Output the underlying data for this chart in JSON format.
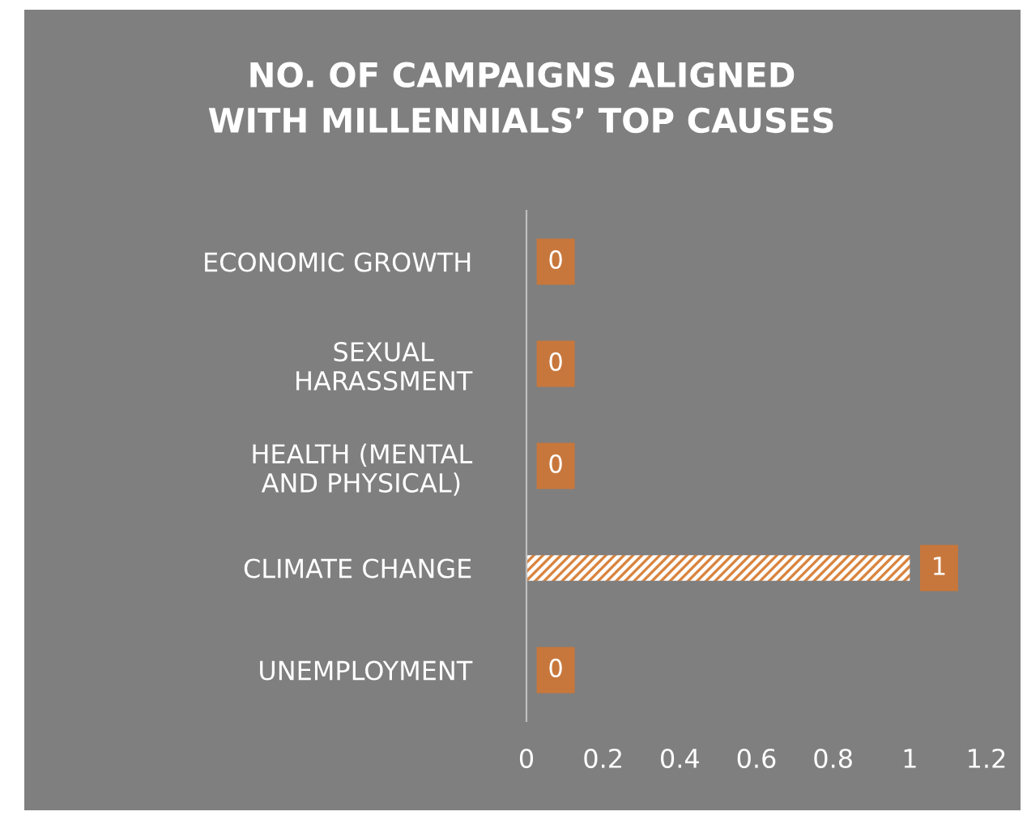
{
  "chart_data": {
    "type": "bar",
    "orientation": "horizontal",
    "title": "NO. OF CAMPAIGNS ALIGNED\nWITH MILLENNIALS’ TOP CAUSES",
    "categories": [
      "ECONOMIC GROWTH",
      "SEXUAL\nHARASSMENT",
      "HEALTH (MENTAL\nAND PHYSICAL)",
      "CLIMATE CHANGE",
      "UNEMPLOYMENT"
    ],
    "values": [
      0,
      0,
      0,
      1,
      0
    ],
    "color": "#d9843f",
    "xlim": [
      0,
      1.2
    ],
    "xticks": [
      0,
      0.2,
      0.4,
      0.6,
      0.8,
      1,
      1.2
    ],
    "grid": false,
    "data_labels": true
  }
}
